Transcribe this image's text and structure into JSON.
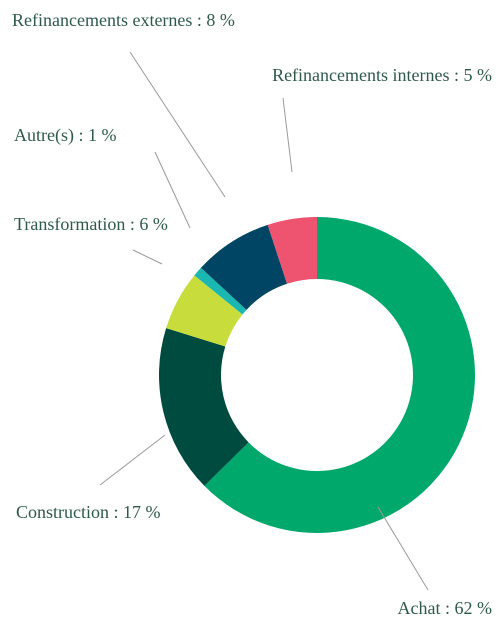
{
  "chart_data": {
    "type": "donut",
    "values": [
      62,
      17,
      6,
      1,
      8,
      5
    ],
    "value_labels": [
      "Achat : 62 %",
      "Construction : 17 %",
      "Transformation : 6 %",
      "Autre(s) : 1 %",
      "Refinancements externes : 8 %",
      "Refinancements internes : 5 %"
    ],
    "colors": [
      "#00a86b",
      "#004b40",
      "#c8dc3c",
      "#1ab8b0",
      "#004563",
      "#ee5470"
    ]
  }
}
